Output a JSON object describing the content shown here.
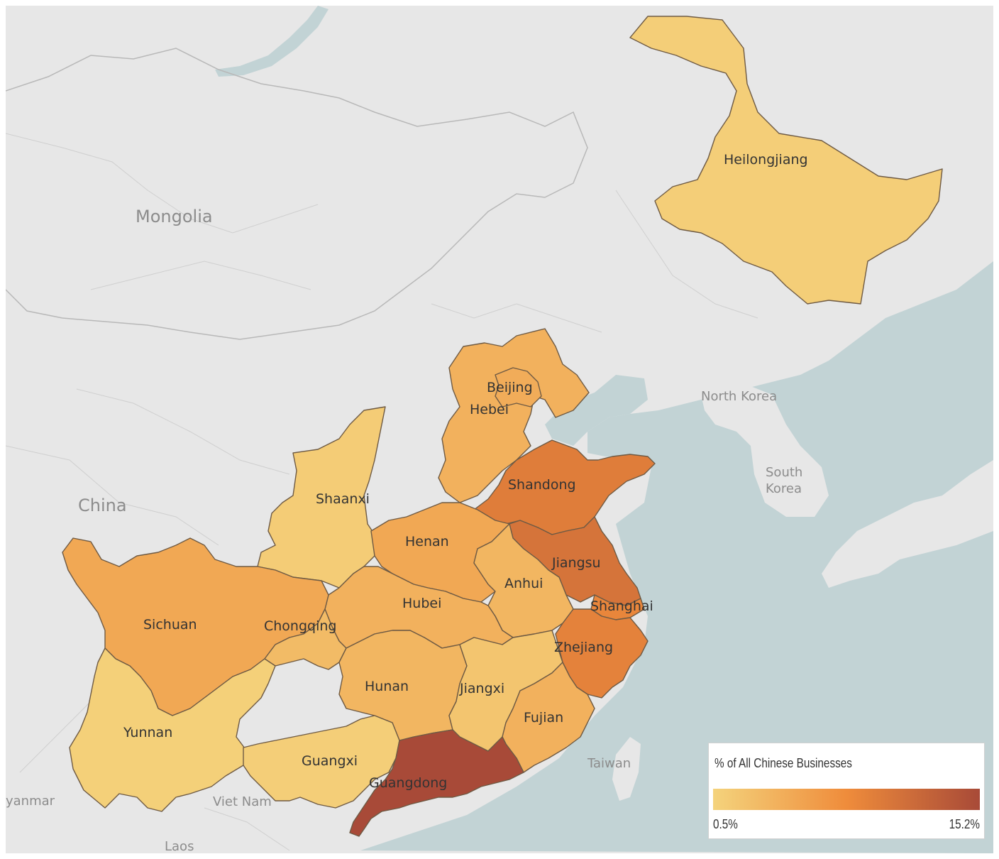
{
  "colors": {
    "land": "#e7e7e7",
    "water": "#c2d3d5",
    "border": "#c6c6c6",
    "scale_low": "#f4d37c",
    "scale_mid": "#ef8c3b",
    "scale_high": "#a84a38"
  },
  "map_labels": {
    "mongolia": "Mongolia",
    "china": "China",
    "north_korea": "North Korea",
    "south_korea_1": "South",
    "south_korea_2": "Korea",
    "taiwan": "Taiwan",
    "viet_nam": "Viet Nam",
    "laos": "Laos",
    "myanmar": "yanmar"
  },
  "provinces": [
    {
      "name": "Heilongjiang",
      "value": 1.0
    },
    {
      "name": "Beijing",
      "value": 4.5
    },
    {
      "name": "Hebei",
      "value": 4.0
    },
    {
      "name": "Shaanxi",
      "value": 1.2
    },
    {
      "name": "Shandong",
      "value": 9.5
    },
    {
      "name": "Henan",
      "value": 5.0
    },
    {
      "name": "Jiangsu",
      "value": 10.5
    },
    {
      "name": "Anhui",
      "value": 3.5
    },
    {
      "name": "Hubei",
      "value": 4.0
    },
    {
      "name": "Shanghai",
      "value": 8.5
    },
    {
      "name": "Sichuan",
      "value": 5.0
    },
    {
      "name": "Chongqing",
      "value": 3.0
    },
    {
      "name": "Zhejiang",
      "value": 9.0
    },
    {
      "name": "Hunan",
      "value": 3.5
    },
    {
      "name": "Jiangxi",
      "value": 2.0
    },
    {
      "name": "Fujian",
      "value": 4.0
    },
    {
      "name": "Yunnan",
      "value": 0.8
    },
    {
      "name": "Guangxi",
      "value": 1.0
    },
    {
      "name": "Guangdong",
      "value": 15.2
    }
  ],
  "legend": {
    "title": "% of All Chinese Businesses",
    "min_label": "0.5%",
    "max_label": "15.2%",
    "min": 0.5,
    "max": 15.2
  }
}
